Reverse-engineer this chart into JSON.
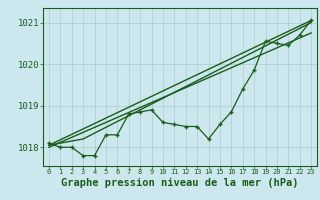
{
  "xlabel": "Graphe pression niveau de la mer (hPa)",
  "bg_color": "#cce8ee",
  "grid_color": "#aacccc",
  "line_color": "#1a5c1a",
  "ylim": [
    1017.55,
    1021.35
  ],
  "xlim": [
    -0.5,
    23.5
  ],
  "yticks": [
    1018,
    1019,
    1020,
    1021
  ],
  "xticks": [
    0,
    1,
    2,
    3,
    4,
    5,
    6,
    7,
    8,
    9,
    10,
    11,
    12,
    13,
    14,
    15,
    16,
    17,
    18,
    19,
    20,
    21,
    22,
    23
  ],
  "series1": [
    1018.1,
    1018.0,
    1018.0,
    1017.8,
    1017.8,
    1018.3,
    1018.3,
    1018.8,
    1018.85,
    1018.9,
    1018.6,
    1018.55,
    1018.5,
    1018.5,
    1018.2,
    1018.55,
    1018.85,
    1019.4,
    1019.85,
    1020.55,
    1020.5,
    1020.45,
    1020.7,
    1021.05
  ],
  "series2_x": [
    0,
    23
  ],
  "series2_y": [
    1018.05,
    1021.05
  ],
  "series3_x": [
    0,
    23
  ],
  "series3_y": [
    1018.0,
    1020.75
  ],
  "series4_x": [
    0,
    3,
    23
  ],
  "series4_y": [
    1018.05,
    1018.2,
    1021.0
  ],
  "xlabel_fontsize": 7.5,
  "tick_fontsize": 6.5,
  "xtick_fontsize": 5.0
}
